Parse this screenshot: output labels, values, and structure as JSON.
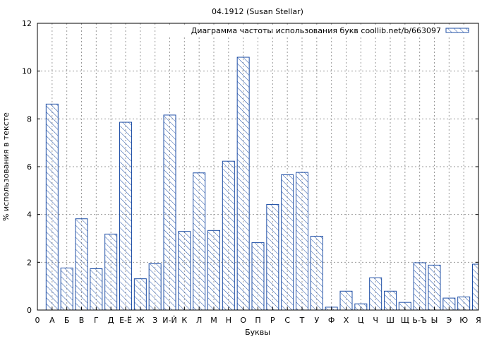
{
  "chart_data": {
    "type": "bar",
    "title": "04.1912 (Susan Stellar)",
    "xlabel": "Буквы",
    "ylabel": "% использования в тексте",
    "legend": {
      "label": "Диаграмма частоты использования букв coollib.net/b/663097",
      "placement": "top-right"
    },
    "grid": true,
    "ylim": [
      0,
      12
    ],
    "yticks": [
      "0",
      "2",
      "4",
      "6",
      "8",
      "10",
      "12"
    ],
    "x_origin_label": "0",
    "categories": [
      "А",
      "Б",
      "В",
      "Г",
      "Д",
      "Е-Ё",
      "Ж",
      "З",
      "И-Й",
      "К",
      "Л",
      "М",
      "Н",
      "О",
      "П",
      "Р",
      "С",
      "Т",
      "У",
      "Ф",
      "Х",
      "Ц",
      "Ч",
      "Ш",
      "Щ",
      "Ь-Ъ",
      "Ы",
      "Э",
      "Ю",
      "Я"
    ],
    "values": [
      8.62,
      1.76,
      3.82,
      1.73,
      3.18,
      7.86,
      1.31,
      1.94,
      8.16,
      3.29,
      5.74,
      3.33,
      6.23,
      10.58,
      2.82,
      4.42,
      5.66,
      5.76,
      3.09,
      0.12,
      0.79,
      0.26,
      1.35,
      0.79,
      0.32,
      1.98,
      1.88,
      0.5,
      0.55,
      1.92
    ],
    "colors": {
      "bar_stroke": "#1f4fa6",
      "hatch": "#1f4fa6",
      "grid": "#999999",
      "axis": "#000000"
    }
  }
}
